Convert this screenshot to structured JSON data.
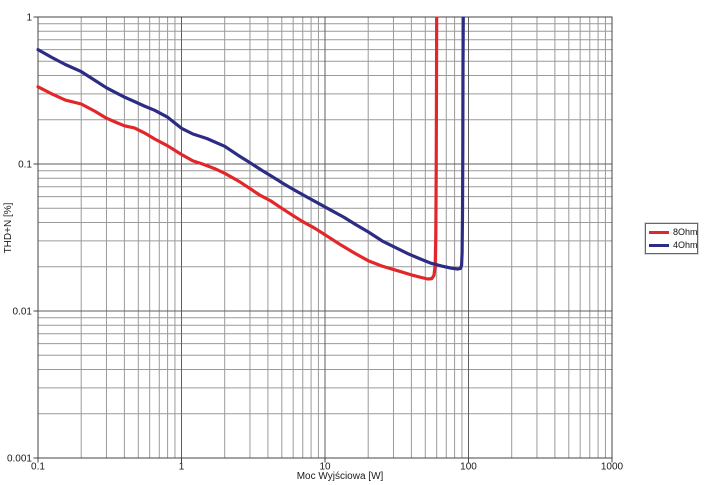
{
  "chart_data": {
    "type": "line",
    "title": "",
    "xlabel": "Moc Wyjściowa [W]",
    "ylabel": "THD+N [%]",
    "x_scale": "log",
    "y_scale": "log",
    "xlim": [
      0.1,
      1000
    ],
    "ylim": [
      0.001,
      1
    ],
    "x_ticks": [
      {
        "v": 0.1,
        "label": "0.1"
      },
      {
        "v": 1,
        "label": "1"
      },
      {
        "v": 10,
        "label": "10"
      },
      {
        "v": 100,
        "label": "100"
      },
      {
        "v": 1000,
        "label": "1000"
      }
    ],
    "y_ticks": [
      {
        "v": 1,
        "label": "1"
      },
      {
        "v": 0.1,
        "label": "0.1"
      },
      {
        "v": 0.01,
        "label": "0.01"
      },
      {
        "v": 0.001,
        "label": "0.001"
      }
    ],
    "grid": {
      "major": true,
      "minor": true
    },
    "colors": {
      "background": "#ffffff",
      "grid_minor": "#9a9a9a",
      "grid_major": "#5f5f5f",
      "axis": "#444444",
      "text": "#1a1a1a"
    },
    "legend": {
      "position": "outside-right"
    },
    "series": [
      {
        "name": "8Ohm",
        "color": "#e22629",
        "points": [
          [
            0.1,
            0.335
          ],
          [
            0.125,
            0.3
          ],
          [
            0.155,
            0.272
          ],
          [
            0.2,
            0.256
          ],
          [
            0.25,
            0.228
          ],
          [
            0.3,
            0.205
          ],
          [
            0.35,
            0.192
          ],
          [
            0.4,
            0.182
          ],
          [
            0.47,
            0.176
          ],
          [
            0.55,
            0.163
          ],
          [
            0.65,
            0.148
          ],
          [
            0.8,
            0.133
          ],
          [
            1.0,
            0.116
          ],
          [
            1.2,
            0.105
          ],
          [
            1.4,
            0.1
          ],
          [
            1.7,
            0.093
          ],
          [
            2.0,
            0.0865
          ],
          [
            2.5,
            0.0765
          ],
          [
            3.0,
            0.068
          ],
          [
            3.5,
            0.0615
          ],
          [
            4.2,
            0.056
          ],
          [
            5.0,
            0.05
          ],
          [
            6.0,
            0.0445
          ],
          [
            7.0,
            0.0405
          ],
          [
            8.5,
            0.0365
          ],
          [
            10.5,
            0.032
          ],
          [
            13,
            0.028
          ],
          [
            16,
            0.0248
          ],
          [
            20,
            0.022
          ],
          [
            25,
            0.0202
          ],
          [
            32,
            0.0188
          ],
          [
            40,
            0.0176
          ],
          [
            47,
            0.0169
          ],
          [
            52,
            0.0165
          ],
          [
            55.5,
            0.0166
          ],
          [
            57.5,
            0.0175
          ],
          [
            58.6,
            0.0205
          ],
          [
            59.2,
            0.032
          ],
          [
            59.6,
            0.09
          ],
          [
            59.8,
            0.35
          ],
          [
            60,
            1.15
          ]
        ]
      },
      {
        "name": "4Ohm",
        "color": "#2c2c84",
        "points": [
          [
            0.1,
            0.6
          ],
          [
            0.125,
            0.53
          ],
          [
            0.155,
            0.475
          ],
          [
            0.2,
            0.425
          ],
          [
            0.25,
            0.37
          ],
          [
            0.3,
            0.33
          ],
          [
            0.35,
            0.305
          ],
          [
            0.4,
            0.285
          ],
          [
            0.47,
            0.266
          ],
          [
            0.55,
            0.248
          ],
          [
            0.65,
            0.232
          ],
          [
            0.8,
            0.208
          ],
          [
            1.0,
            0.175
          ],
          [
            1.2,
            0.16
          ],
          [
            1.5,
            0.149
          ],
          [
            2.0,
            0.132
          ],
          [
            2.5,
            0.114
          ],
          [
            3.0,
            0.102
          ],
          [
            3.6,
            0.091
          ],
          [
            4.3,
            0.082
          ],
          [
            5.2,
            0.073
          ],
          [
            6.2,
            0.066
          ],
          [
            7.5,
            0.0595
          ],
          [
            9.0,
            0.054
          ],
          [
            11,
            0.0485
          ],
          [
            13.5,
            0.0435
          ],
          [
            16.5,
            0.0385
          ],
          [
            20,
            0.0345
          ],
          [
            25,
            0.03
          ],
          [
            31,
            0.027
          ],
          [
            38,
            0.0245
          ],
          [
            46,
            0.0226
          ],
          [
            55,
            0.0211
          ],
          [
            65,
            0.0202
          ],
          [
            75,
            0.0196
          ],
          [
            84,
            0.0193
          ],
          [
            88,
            0.0195
          ],
          [
            89.5,
            0.0205
          ],
          [
            90.3,
            0.025
          ],
          [
            90.8,
            0.045
          ],
          [
            91.2,
            0.12
          ],
          [
            91.6,
            0.45
          ],
          [
            92,
            1.15
          ]
        ]
      }
    ]
  }
}
